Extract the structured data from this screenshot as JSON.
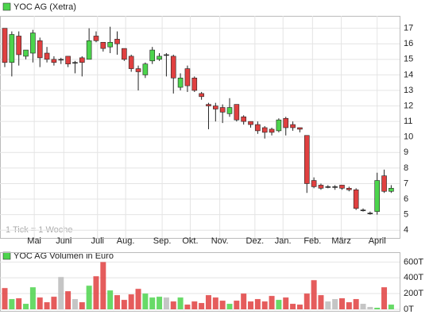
{
  "chart_data": [
    {
      "type": "candlestick",
      "legend": "YOC AG (Xetra)",
      "note": "1 Tick = 1 Woche",
      "up_color": "#4cd44c",
      "down_color": "#e04040",
      "flat_color": "#333333",
      "categories": [
        null,
        null,
        null,
        null,
        null,
        null,
        null,
        null,
        null,
        null,
        null,
        null,
        null,
        null,
        null,
        null,
        null,
        null,
        null,
        null,
        null,
        null,
        null,
        null,
        null,
        null,
        null,
        null,
        null,
        null,
        null,
        null,
        null,
        null,
        null,
        null,
        null,
        null,
        null,
        null,
        null,
        null,
        null,
        null,
        null,
        null,
        null,
        null,
        null,
        null,
        null,
        null,
        null,
        null,
        null,
        null
      ],
      "open": [
        17,
        14.8,
        16.5,
        15.2,
        15.4,
        16.2,
        15.4,
        15.0,
        15.0,
        15.2,
        14.8,
        15.1,
        15.0,
        16.5,
        16.1,
        15.8,
        16.3,
        15.7,
        15.2,
        14.4,
        14.0,
        14.9,
        15.0,
        15.3,
        15.2,
        13.2,
        14.4,
        13.8,
        12.8,
        12.1,
        12.0,
        11.9,
        11.5,
        12.1,
        11.3,
        11.0,
        10.8,
        10.6,
        10.5,
        10.4,
        11.2,
        10.8,
        10.6,
        10.1,
        7.2,
        6.9,
        6.8,
        6.8,
        6.9,
        6.7,
        6.6,
        5.3,
        5.1,
        5.2,
        7.5,
        6.5
      ],
      "close": [
        14.8,
        16.6,
        15.3,
        15.6,
        16.7,
        15.1,
        15.0,
        14.8,
        15.0,
        14.7,
        14.8,
        14.8,
        16.2,
        16.2,
        15.7,
        16.1,
        16.0,
        15.0,
        14.4,
        14.2,
        14.7,
        15.6,
        15.2,
        15.3,
        13.8,
        13.8,
        13.3,
        13.0,
        12.6,
        12.0,
        11.8,
        11.6,
        11.9,
        11.1,
        11.0,
        10.8,
        10.4,
        10.3,
        10.3,
        11.1,
        10.6,
        10.6,
        10.5,
        7.0,
        6.8,
        6.7,
        6.8,
        6.8,
        6.7,
        6.6,
        5.4,
        5.3,
        5.1,
        7.2,
        6.5,
        6.7
      ],
      "high": [
        17,
        16.8,
        16.8,
        15.6,
        16.9,
        16.4,
        15.8,
        15.2,
        15.1,
        15.2,
        14.9,
        15.2,
        17.0,
        16.8,
        16.1,
        17.1,
        16.8,
        15.7,
        15.3,
        14.6,
        14.8,
        15.8,
        15.4,
        15.4,
        15.3,
        14.1,
        14.6,
        13.9,
        12.9,
        12.2,
        12.2,
        12.1,
        12.5,
        12.1,
        11.4,
        11.0,
        11.0,
        10.7,
        10.6,
        11.2,
        11.3,
        11.0,
        10.6,
        10.1,
        7.4,
        7.0,
        6.9,
        6.9,
        6.9,
        6.8,
        6.7,
        5.4,
        5.2,
        7.7,
        7.9,
        6.9
      ],
      "low": [
        14.5,
        13.9,
        14.6,
        15.0,
        14.8,
        14.5,
        14.8,
        14.6,
        14.7,
        14.5,
        14.1,
        13.9,
        15.0,
        16.1,
        15.5,
        15.4,
        15.3,
        14.9,
        14.2,
        13.0,
        13.8,
        14.7,
        14.9,
        13.9,
        12.8,
        13.0,
        12.9,
        12.9,
        12.4,
        10.5,
        11.0,
        10.9,
        11.3,
        11.0,
        10.8,
        10.6,
        10.2,
        9.9,
        10.1,
        10.3,
        10.1,
        10.4,
        10.3,
        6.4,
        6.7,
        6.6,
        6.7,
        6.6,
        6.6,
        6.5,
        5.3,
        5.2,
        5.0,
        5.0,
        6.4,
        6.4
      ],
      "xlim": [
        -0.68,
        56.2
      ],
      "xticks": [
        {
          "value": 4.2,
          "label": "Mai"
        },
        {
          "value": 8.4,
          "label": "Juni"
        },
        {
          "value": 13.2,
          "label": "Juli"
        },
        {
          "value": 17.2,
          "label": "Aug."
        },
        {
          "value": 22.4,
          "label": "Sep."
        },
        {
          "value": 26.4,
          "label": "Okt."
        },
        {
          "value": 30.6,
          "label": "Nov."
        },
        {
          "value": 35.6,
          "label": "Dez."
        },
        {
          "value": 39.6,
          "label": "Jan."
        },
        {
          "value": 43.8,
          "label": "Feb."
        },
        {
          "value": 47.9,
          "label": "März"
        },
        {
          "value": 53.0,
          "label": "April"
        }
      ],
      "ylim": [
        3.5,
        17.8
      ],
      "yticks": [
        4,
        5,
        6,
        7,
        8,
        9,
        10,
        11,
        12,
        13,
        14,
        15,
        16,
        17
      ],
      "grid": true
    },
    {
      "type": "bar",
      "legend": "YOC AG Volumen in Euro",
      "legend_color": "#4cd44c",
      "values": [
        270,
        130,
        140,
        70,
        280,
        150,
        90,
        160,
        410,
        230,
        130,
        90,
        300,
        420,
        600,
        240,
        180,
        120,
        190,
        260,
        200,
        150,
        160,
        150,
        100,
        150,
        60,
        100,
        80,
        180,
        150,
        110,
        70,
        110,
        200,
        100,
        130,
        100,
        170,
        120,
        150,
        70,
        60,
        200,
        370,
        180,
        100,
        130,
        140,
        90,
        130,
        70,
        30,
        20,
        280,
        60
      ],
      "xlim": [
        -0.68,
        56.2
      ],
      "ylim": [
        -20,
        725
      ],
      "yticks": [
        {
          "value": 0,
          "label": "0T"
        },
        {
          "value": 200,
          "label": "200T"
        },
        {
          "value": 400,
          "label": "400T"
        },
        {
          "value": 600,
          "label": "600T"
        }
      ],
      "grid": true
    }
  ]
}
